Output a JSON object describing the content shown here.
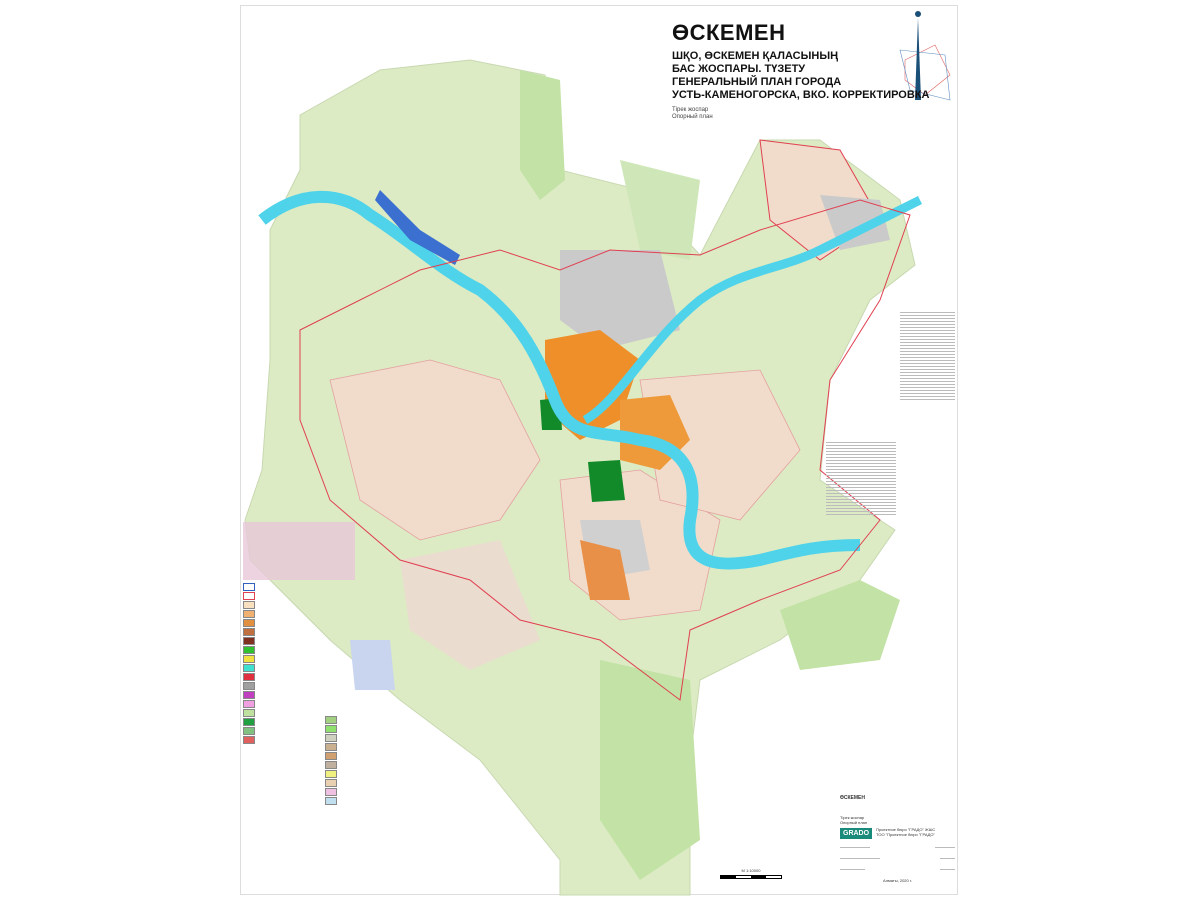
{
  "title": {
    "main": "ӨСКЕМЕН",
    "lines": [
      "ШҚО, ӨСКЕМЕН ҚАЛАСЫНЫҢ",
      "БАС ЖОСПАРЫ. ТҮЗЕТУ",
      "ГЕНЕРАЛЬНЫЙ ПЛАН ГОРОДА",
      "УСТЬ-КАМЕНОГОРСКА, ВКО. КОРРЕКТИРОВКА"
    ],
    "sheet_kz": "Тірек жоспар",
    "sheet_ru": "Опорный план"
  },
  "colors": {
    "land": "#dcebc4",
    "forest": "#b9dd9c",
    "river": "#4fd3ea",
    "urban": "#f1d6c4",
    "center": "#ef8f2a",
    "industrial": "#c9c9c9",
    "boundary": "#e04050",
    "park": "#0f8a2a"
  },
  "icons": [
    "north-arrow-icon",
    "wind-rose-icon",
    "grado-logo"
  ],
  "title_block": {
    "name": "ӨСКЕМЕН",
    "logo": "GRADO",
    "company_1": "Проектное бюро \"ГРАДО\" ЖШС",
    "company_2": "ТОО \"Проектное бюро \"ГРАДО\"",
    "sheet_kz": "Тірек жоспар",
    "sheet_ru": "Опорный план",
    "city_year": "Алматы, 2020 г."
  },
  "scale": {
    "label": "М 1:10000"
  }
}
